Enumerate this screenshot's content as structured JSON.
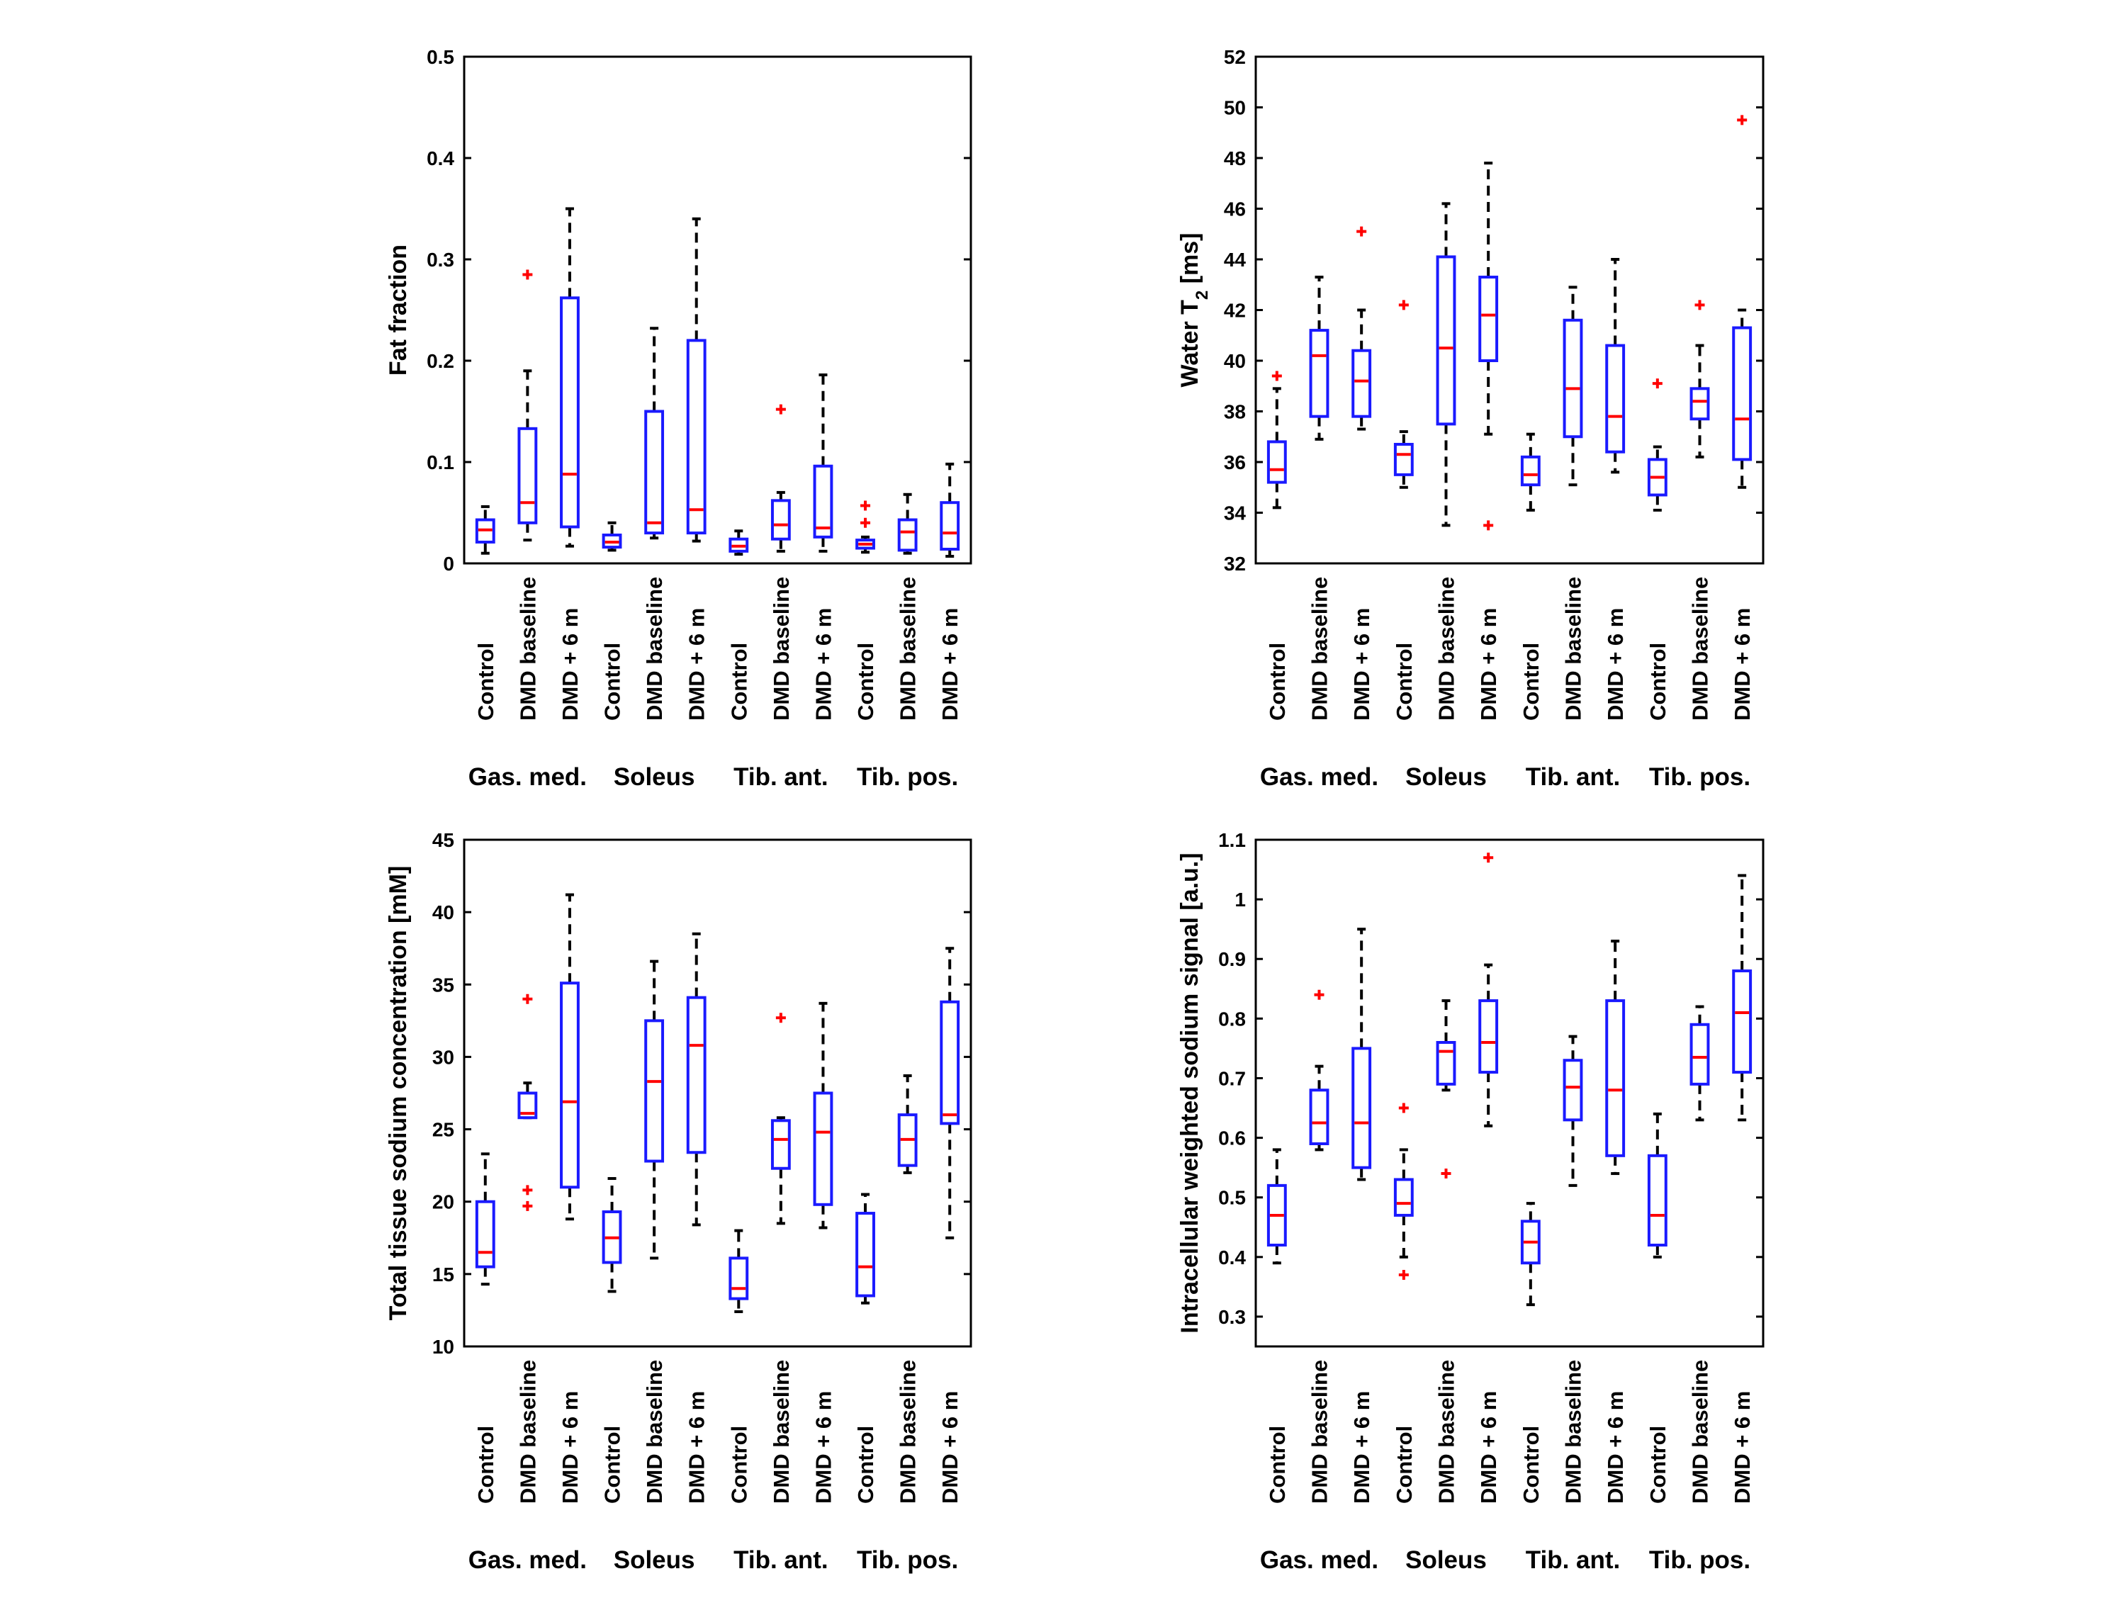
{
  "figure": {
    "group_labels": [
      "Gas. med.",
      "Soleus",
      "Tib. ant.",
      "Tib. pos."
    ],
    "category_labels": [
      "Control",
      "DMD baseline",
      "DMD + 6 m"
    ],
    "box_color": "#1a1aff",
    "median_color": "#ff0000",
    "outlier_color": "#ff0000",
    "whisker_color": "#000000"
  },
  "chart_data": [
    {
      "type": "box",
      "ylabel": "Fat fraction",
      "ylim": [
        0,
        0.5
      ],
      "yticks": [
        "0",
        "0.1",
        "0.2",
        "0.3",
        "0.4",
        "0.5"
      ],
      "groups": [
        "Gas. med.",
        "Soleus",
        "Tib. ant.",
        "Tib. pos."
      ],
      "categories": [
        "Control",
        "DMD baseline",
        "DMD + 6 m"
      ],
      "boxes": [
        {
          "lower_whisker": 0.01,
          "q1": 0.021,
          "median": 0.033,
          "q3": 0.043,
          "upper_whisker": 0.056,
          "outliers": []
        },
        {
          "lower_whisker": 0.023,
          "q1": 0.04,
          "median": 0.06,
          "q3": 0.133,
          "upper_whisker": 0.19,
          "outliers": [
            0.285
          ]
        },
        {
          "lower_whisker": 0.017,
          "q1": 0.036,
          "median": 0.088,
          "q3": 0.262,
          "upper_whisker": 0.35,
          "outliers": []
        },
        {
          "lower_whisker": 0.013,
          "q1": 0.016,
          "median": 0.021,
          "q3": 0.028,
          "upper_whisker": 0.04,
          "outliers": []
        },
        {
          "lower_whisker": 0.025,
          "q1": 0.03,
          "median": 0.04,
          "q3": 0.15,
          "upper_whisker": 0.232,
          "outliers": []
        },
        {
          "lower_whisker": 0.022,
          "q1": 0.03,
          "median": 0.053,
          "q3": 0.22,
          "upper_whisker": 0.34,
          "outliers": []
        },
        {
          "lower_whisker": 0.009,
          "q1": 0.012,
          "median": 0.017,
          "q3": 0.024,
          "upper_whisker": 0.032,
          "outliers": []
        },
        {
          "lower_whisker": 0.012,
          "q1": 0.024,
          "median": 0.038,
          "q3": 0.062,
          "upper_whisker": 0.07,
          "outliers": [
            0.152
          ]
        },
        {
          "lower_whisker": 0.012,
          "q1": 0.026,
          "median": 0.035,
          "q3": 0.096,
          "upper_whisker": 0.186,
          "outliers": []
        },
        {
          "lower_whisker": 0.011,
          "q1": 0.015,
          "median": 0.019,
          "q3": 0.023,
          "upper_whisker": 0.026,
          "outliers": [
            0.04,
            0.057
          ]
        },
        {
          "lower_whisker": 0.01,
          "q1": 0.013,
          "median": 0.031,
          "q3": 0.043,
          "upper_whisker": 0.068,
          "outliers": []
        },
        {
          "lower_whisker": 0.007,
          "q1": 0.014,
          "median": 0.03,
          "q3": 0.06,
          "upper_whisker": 0.098,
          "outliers": []
        }
      ]
    },
    {
      "type": "box",
      "ylabel": "Water T2 [ms]",
      "ylim": [
        32,
        52
      ],
      "yticks": [
        "32",
        "34",
        "36",
        "38",
        "40",
        "42",
        "44",
        "46",
        "48",
        "50",
        "52"
      ],
      "groups": [
        "Gas. med.",
        "Soleus",
        "Tib. ant.",
        "Tib. pos."
      ],
      "categories": [
        "Control",
        "DMD baseline",
        "DMD + 6 m"
      ],
      "boxes": [
        {
          "lower_whisker": 34.2,
          "q1": 35.2,
          "median": 35.7,
          "q3": 36.8,
          "upper_whisker": 38.9,
          "outliers": [
            39.4
          ]
        },
        {
          "lower_whisker": 36.9,
          "q1": 37.8,
          "median": 40.2,
          "q3": 41.2,
          "upper_whisker": 43.3,
          "outliers": []
        },
        {
          "lower_whisker": 37.3,
          "q1": 37.8,
          "median": 39.2,
          "q3": 40.4,
          "upper_whisker": 42.0,
          "outliers": [
            45.1
          ]
        },
        {
          "lower_whisker": 35.0,
          "q1": 35.5,
          "median": 36.3,
          "q3": 36.7,
          "upper_whisker": 37.2,
          "outliers": [
            42.2
          ]
        },
        {
          "lower_whisker": 33.5,
          "q1": 37.5,
          "median": 40.5,
          "q3": 44.1,
          "upper_whisker": 46.2,
          "outliers": []
        },
        {
          "lower_whisker": 37.1,
          "q1": 40.0,
          "median": 41.8,
          "q3": 43.3,
          "upper_whisker": 47.8,
          "outliers": [
            33.5
          ]
        },
        {
          "lower_whisker": 34.1,
          "q1": 35.1,
          "median": 35.5,
          "q3": 36.2,
          "upper_whisker": 37.1,
          "outliers": []
        },
        {
          "lower_whisker": 35.1,
          "q1": 37.0,
          "median": 38.9,
          "q3": 41.6,
          "upper_whisker": 42.9,
          "outliers": []
        },
        {
          "lower_whisker": 35.6,
          "q1": 36.4,
          "median": 37.8,
          "q3": 40.6,
          "upper_whisker": 44.0,
          "outliers": []
        },
        {
          "lower_whisker": 34.1,
          "q1": 34.7,
          "median": 35.4,
          "q3": 36.1,
          "upper_whisker": 36.6,
          "outliers": [
            39.1
          ]
        },
        {
          "lower_whisker": 36.2,
          "q1": 37.7,
          "median": 38.4,
          "q3": 38.9,
          "upper_whisker": 40.6,
          "outliers": [
            42.2
          ]
        },
        {
          "lower_whisker": 35.0,
          "q1": 36.1,
          "median": 37.7,
          "q3": 41.3,
          "upper_whisker": 42.0,
          "outliers": [
            49.5
          ]
        }
      ]
    },
    {
      "type": "box",
      "ylabel": "Total tissue sodium concentration [mM]",
      "ylim": [
        10,
        45
      ],
      "yticks": [
        "10",
        "15",
        "20",
        "25",
        "30",
        "35",
        "40",
        "45"
      ],
      "groups": [
        "Gas. med.",
        "Soleus",
        "Tib. ant.",
        "Tib. pos."
      ],
      "categories": [
        "Control",
        "DMD baseline",
        "DMD + 6 m"
      ],
      "boxes": [
        {
          "lower_whisker": 14.3,
          "q1": 15.5,
          "median": 16.5,
          "q3": 20.0,
          "upper_whisker": 23.3,
          "outliers": []
        },
        {
          "lower_whisker": 25.8,
          "q1": 25.8,
          "median": 26.1,
          "q3": 27.5,
          "upper_whisker": 28.2,
          "outliers": [
            34.0,
            20.8,
            19.7
          ]
        },
        {
          "lower_whisker": 18.8,
          "q1": 21.0,
          "median": 26.9,
          "q3": 35.1,
          "upper_whisker": 41.2,
          "outliers": []
        },
        {
          "lower_whisker": 13.8,
          "q1": 15.8,
          "median": 17.5,
          "q3": 19.3,
          "upper_whisker": 21.6,
          "outliers": []
        },
        {
          "lower_whisker": 16.1,
          "q1": 22.8,
          "median": 28.3,
          "q3": 32.5,
          "upper_whisker": 36.6,
          "outliers": []
        },
        {
          "lower_whisker": 18.4,
          "q1": 23.4,
          "median": 30.8,
          "q3": 34.1,
          "upper_whisker": 38.5,
          "outliers": []
        },
        {
          "lower_whisker": 12.4,
          "q1": 13.3,
          "median": 14.0,
          "q3": 16.1,
          "upper_whisker": 18.0,
          "outliers": []
        },
        {
          "lower_whisker": 18.5,
          "q1": 22.3,
          "median": 24.3,
          "q3": 25.6,
          "upper_whisker": 25.8,
          "outliers": [
            32.7
          ]
        },
        {
          "lower_whisker": 18.2,
          "q1": 19.8,
          "median": 24.8,
          "q3": 27.5,
          "upper_whisker": 33.7,
          "outliers": []
        },
        {
          "lower_whisker": 13.0,
          "q1": 13.5,
          "median": 15.5,
          "q3": 19.2,
          "upper_whisker": 20.5,
          "outliers": []
        },
        {
          "lower_whisker": 22.0,
          "q1": 22.5,
          "median": 24.3,
          "q3": 26.0,
          "upper_whisker": 28.7,
          "outliers": []
        },
        {
          "lower_whisker": 17.5,
          "q1": 25.4,
          "median": 26.0,
          "q3": 33.8,
          "upper_whisker": 37.5,
          "outliers": []
        }
      ]
    },
    {
      "type": "box",
      "ylabel": "Intracellular weighted sodium signal [a.u.]",
      "ylim": [
        0.25,
        1.1
      ],
      "yticks": [
        "0.3",
        "0.4",
        "0.5",
        "0.6",
        "0.7",
        "0.8",
        "0.9",
        "1",
        "1.1"
      ],
      "groups": [
        "Gas. med.",
        "Soleus",
        "Tib. ant.",
        "Tib. pos."
      ],
      "categories": [
        "Control",
        "DMD baseline",
        "DMD + 6 m"
      ],
      "boxes": [
        {
          "lower_whisker": 0.39,
          "q1": 0.42,
          "median": 0.47,
          "q3": 0.52,
          "upper_whisker": 0.58,
          "outliers": []
        },
        {
          "lower_whisker": 0.58,
          "q1": 0.59,
          "median": 0.625,
          "q3": 0.68,
          "upper_whisker": 0.72,
          "outliers": [
            0.84
          ]
        },
        {
          "lower_whisker": 0.53,
          "q1": 0.55,
          "median": 0.625,
          "q3": 0.75,
          "upper_whisker": 0.95,
          "outliers": []
        },
        {
          "lower_whisker": 0.4,
          "q1": 0.47,
          "median": 0.49,
          "q3": 0.53,
          "upper_whisker": 0.58,
          "outliers": [
            0.65,
            0.37
          ]
        },
        {
          "lower_whisker": 0.68,
          "q1": 0.69,
          "median": 0.745,
          "q3": 0.76,
          "upper_whisker": 0.83,
          "outliers": [
            0.54
          ]
        },
        {
          "lower_whisker": 0.62,
          "q1": 0.71,
          "median": 0.76,
          "q3": 0.83,
          "upper_whisker": 0.89,
          "outliers": [
            1.07
          ]
        },
        {
          "lower_whisker": 0.32,
          "q1": 0.39,
          "median": 0.425,
          "q3": 0.46,
          "upper_whisker": 0.49,
          "outliers": []
        },
        {
          "lower_whisker": 0.52,
          "q1": 0.63,
          "median": 0.685,
          "q3": 0.73,
          "upper_whisker": 0.77,
          "outliers": []
        },
        {
          "lower_whisker": 0.54,
          "q1": 0.57,
          "median": 0.68,
          "q3": 0.83,
          "upper_whisker": 0.93,
          "outliers": []
        },
        {
          "lower_whisker": 0.4,
          "q1": 0.42,
          "median": 0.47,
          "q3": 0.57,
          "upper_whisker": 0.64,
          "outliers": []
        },
        {
          "lower_whisker": 0.63,
          "q1": 0.69,
          "median": 0.735,
          "q3": 0.79,
          "upper_whisker": 0.82,
          "outliers": []
        },
        {
          "lower_whisker": 0.63,
          "q1": 0.71,
          "median": 0.81,
          "q3": 0.88,
          "upper_whisker": 1.04,
          "outliers": []
        }
      ]
    }
  ]
}
